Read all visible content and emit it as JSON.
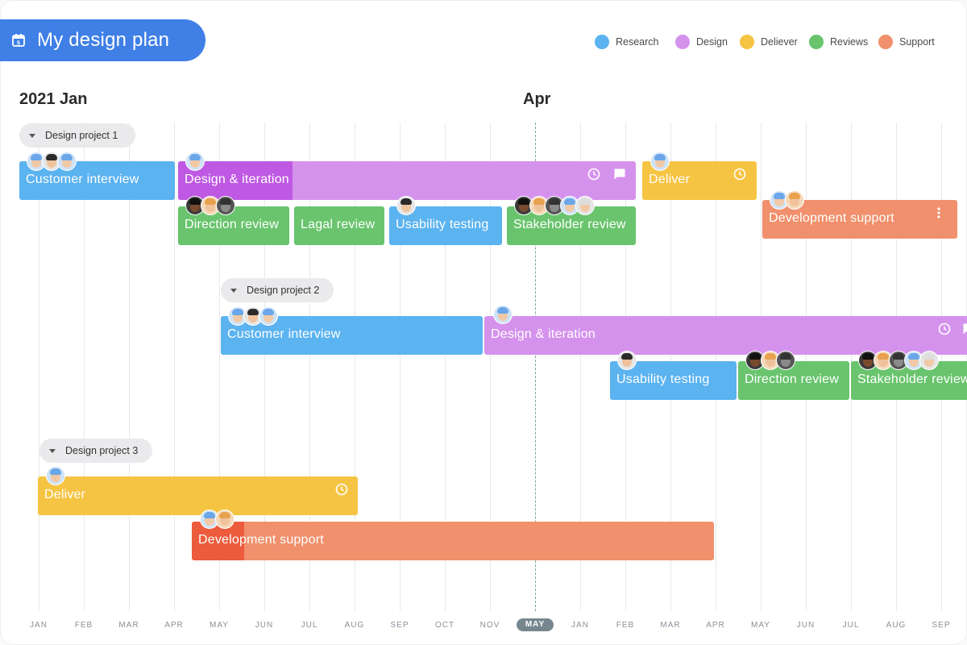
{
  "header": {
    "title": "My design plan"
  },
  "legend": [
    {
      "label": "Research",
      "color": "#5bb3f0"
    },
    {
      "label": "Design",
      "color": "#d592ec"
    },
    {
      "label": "Deliever",
      "color": "#f6c443"
    },
    {
      "label": "Reviews",
      "color": "#69c46d"
    },
    {
      "label": "Support",
      "color": "#f0906c"
    }
  ],
  "periods": [
    "2021 Jan",
    "Apr"
  ],
  "months": [
    "JAN",
    "FEB",
    "MAR",
    "APR",
    "MAY",
    "JUN",
    "JUL",
    "AUG",
    "SEP",
    "OCT",
    "NOV",
    "MAY",
    "JAN",
    "FEB",
    "MAR",
    "APR",
    "MAY",
    "JUN",
    "JUL",
    "AUG",
    "SEP"
  ],
  "today_month": "MAY",
  "projects": [
    {
      "name": "Design project 1"
    },
    {
      "name": "Design project 2"
    },
    {
      "name": "Design project 3"
    }
  ],
  "tasks": {
    "p1_customer_interview": "Customer interview",
    "p1_design_iteration": "Design & iteration",
    "p1_deliver": "Deliver",
    "p1_direction_review": "Direction review",
    "p1_lagal_review": "Lagal review",
    "p1_usability_testing": "Usability testing",
    "p1_stakeholder_review": "Stakeholder review",
    "p1_development_support": "Development support",
    "p2_customer_interview": "Customer interview",
    "p2_design_iteration": "Design & iteration",
    "p2_usability_testing": "Usability testing",
    "p2_direction_review": "Direction review",
    "p2_stakeholder_review": "Stakeholder review",
    "p3_deliver": "Deliver",
    "p3_development_support": "Development support"
  },
  "icons": {
    "calendar": "calendar-icon",
    "clock": "clock-icon",
    "comment": "comment-icon",
    "more": "more-vertical-icon",
    "caret": "caret-down-icon"
  },
  "colors": {
    "research": "#5bb3f0",
    "design": "#d592ec",
    "design_progress": "#bf59e3",
    "deliver": "#f6c443",
    "reviews": "#69c46d",
    "support": "#f0906c",
    "support_progress": "#ec5b3c",
    "title_bg": "#3f7fe6"
  }
}
